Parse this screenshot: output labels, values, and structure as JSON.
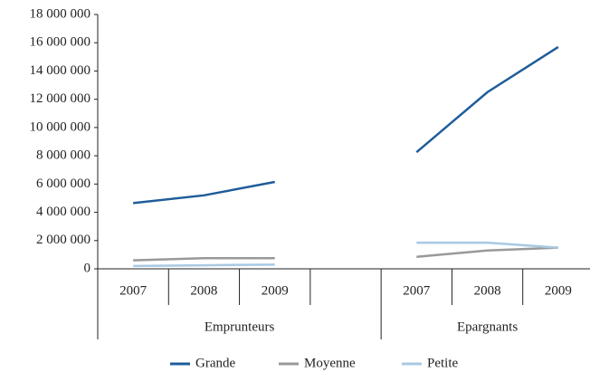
{
  "chart_data": {
    "type": "line",
    "categories": [
      "2007",
      "2008",
      "2009",
      null,
      "2007",
      "2008",
      "2009"
    ],
    "groups": [
      {
        "label": "Emprunteurs",
        "span": 4
      },
      {
        "label": "Epargnants",
        "span": 3
      }
    ],
    "series": [
      {
        "name": "Grande",
        "color": "#1f5c99",
        "values": [
          4650000,
          5200000,
          6150000,
          null,
          8250000,
          12500000,
          15700000
        ]
      },
      {
        "name": "Moyenne",
        "color": "#999999",
        "values": [
          600000,
          750000,
          750000,
          null,
          850000,
          1300000,
          1500000
        ]
      },
      {
        "name": "Petite",
        "color": "#a9c9e2",
        "values": [
          200000,
          250000,
          300000,
          null,
          1850000,
          1850000,
          1500000
        ]
      }
    ],
    "ylim": [
      0,
      18000000
    ],
    "yticks": [
      0,
      {
        "value": 2000000,
        "label": "2 000 000"
      },
      {
        "value": 4000000,
        "label": "4 000 000"
      },
      {
        "value": 6000000,
        "label": "6 000 000"
      },
      {
        "value": 8000000,
        "label": "8 000 000"
      },
      {
        "value": 10000000,
        "label": "10 000 000"
      },
      {
        "value": 12000000,
        "label": "12 000 000"
      },
      {
        "value": 14000000,
        "label": "14 000 000"
      },
      {
        "value": 16000000,
        "label": "16 000 000"
      },
      {
        "value": 18000000,
        "label": "18 000 000"
      }
    ],
    "legend": "bottom"
  }
}
